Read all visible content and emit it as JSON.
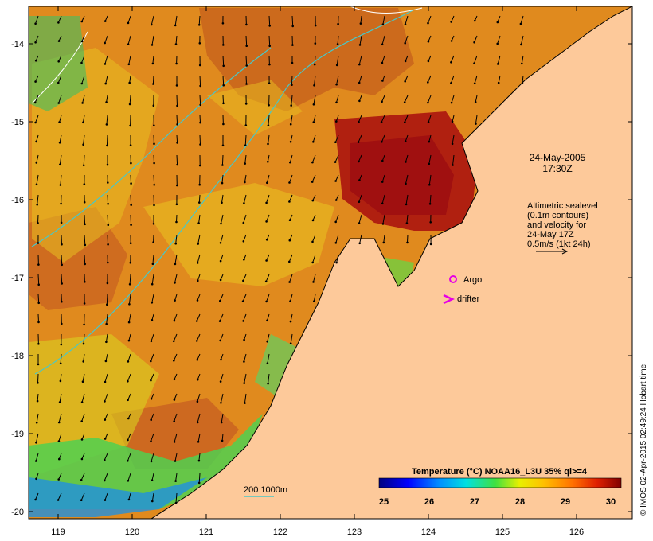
{
  "map": {
    "lon_ticks": [
      "119",
      "120",
      "121",
      "122",
      "123",
      "124",
      "125",
      "126"
    ],
    "lat_ticks": [
      "-14",
      "-15",
      "-16",
      "-17",
      "-18",
      "-19",
      "-20"
    ],
    "date_label": "24-May-2005",
    "time_label": "17:30Z",
    "legend_lines": [
      "Altimetric sealevel",
      "(0.1m contours)",
      "and velocity for",
      "24-May 17Z",
      "0.5m/s (1kt 24h)"
    ],
    "argo_label": "Argo",
    "drifter_label": "drifter",
    "depth_scale_label": "200  1000m",
    "credit": "© IMOS 02-Apr-2015 02:49:24 Hobart time",
    "colors": {
      "land": "#fdc99a",
      "argo": "#e600e6",
      "drifter": "#e600e6",
      "contour": "#48c8c8"
    }
  },
  "colorbar": {
    "title": "Temperature (°C) NOAA16_L3U 35% ql>=4",
    "ticks": [
      "25",
      "26",
      "27",
      "28",
      "29",
      "30"
    ]
  }
}
